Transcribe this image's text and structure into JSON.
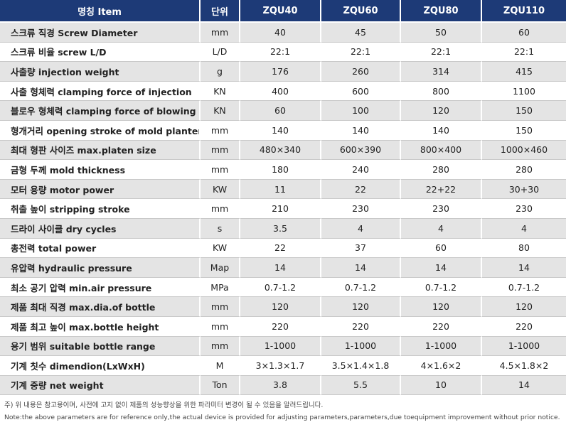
{
  "table": {
    "headers": [
      "명칭 Item",
      "단위",
      "ZQU40",
      "ZQU60",
      "ZQU80",
      "ZQU110"
    ],
    "rows": [
      [
        "스크류 직경 Screw Diameter",
        "mm",
        "40",
        "45",
        "50",
        "60"
      ],
      [
        "스크류 비율 screw L/D",
        "L/D",
        "22:1",
        "22:1",
        "22:1",
        "22:1"
      ],
      [
        "사출량 injection weight",
        "g",
        "176",
        "260",
        "314",
        "415"
      ],
      [
        "사출 형체력 clamping force of injection",
        "KN",
        "400",
        "600",
        "800",
        "1100"
      ],
      [
        "블로우 형체력 clamping force of blowing",
        "KN",
        "60",
        "100",
        "120",
        "150"
      ],
      [
        "형개거리 opening stroke of mold planten",
        "mm",
        "140",
        "140",
        "140",
        "150"
      ],
      [
        "최대 형판 사이즈 max.platen size",
        "mm",
        "480×340",
        "600×390",
        "800×400",
        "1000×460"
      ],
      [
        "금형 두께 mold thickness",
        "mm",
        "180",
        "240",
        "280",
        "280"
      ],
      [
        "모터 용량 motor power",
        "KW",
        "11",
        "22",
        "22+22",
        "30+30"
      ],
      [
        "취출 높이 stripping stroke",
        "mm",
        "210",
        "230",
        "230",
        "230"
      ],
      [
        "드라이 사이클 dry cycles",
        "s",
        "3.5",
        "4",
        "4",
        "4"
      ],
      [
        "총전력 total power",
        "KW",
        "22",
        "37",
        "60",
        "80"
      ],
      [
        "유압력 hydraulic pressure",
        "Map",
        "14",
        "14",
        "14",
        "14"
      ],
      [
        "최소 공기 압력 min.air pressure",
        "MPa",
        "0.7-1.2",
        "0.7-1.2",
        "0.7-1.2",
        "0.7-1.2"
      ],
      [
        "제품 최대 직경 max.dia.of bottle",
        "mm",
        "120",
        "120",
        "120",
        "120"
      ],
      [
        "제품 최고 높이 max.bottle height",
        "mm",
        "220",
        "220",
        "220",
        "220"
      ],
      [
        "용기 범위 suitable bottle range",
        "mm",
        "1-1000",
        "1-1000",
        "1-1000",
        "1-1000"
      ],
      [
        "기계 칫수 dimendion(LxWxH)",
        "M",
        "3×1.3×1.7",
        "3.5×1.4×1.8",
        "4×1.6×2",
        "4.5×1.8×2"
      ],
      [
        "기계 중량 net weight",
        "Ton",
        "3.8",
        "5.5",
        "10",
        "14"
      ]
    ]
  },
  "notes": {
    "korean": "주) 위 내용은 참고용이며, 사전에 고지 없이 제품의 성능향상을 위한 파라미터 변경이 될 수 있음을 알려드립니다.",
    "english": "Note:the above parameters are for reference only,the actual device is provided for adjusting parameters,parameters,due toequipment improvement without prior notice."
  },
  "colors": {
    "header_bg": "#1d3a77",
    "stripe_bg": "#e4e4e4"
  }
}
